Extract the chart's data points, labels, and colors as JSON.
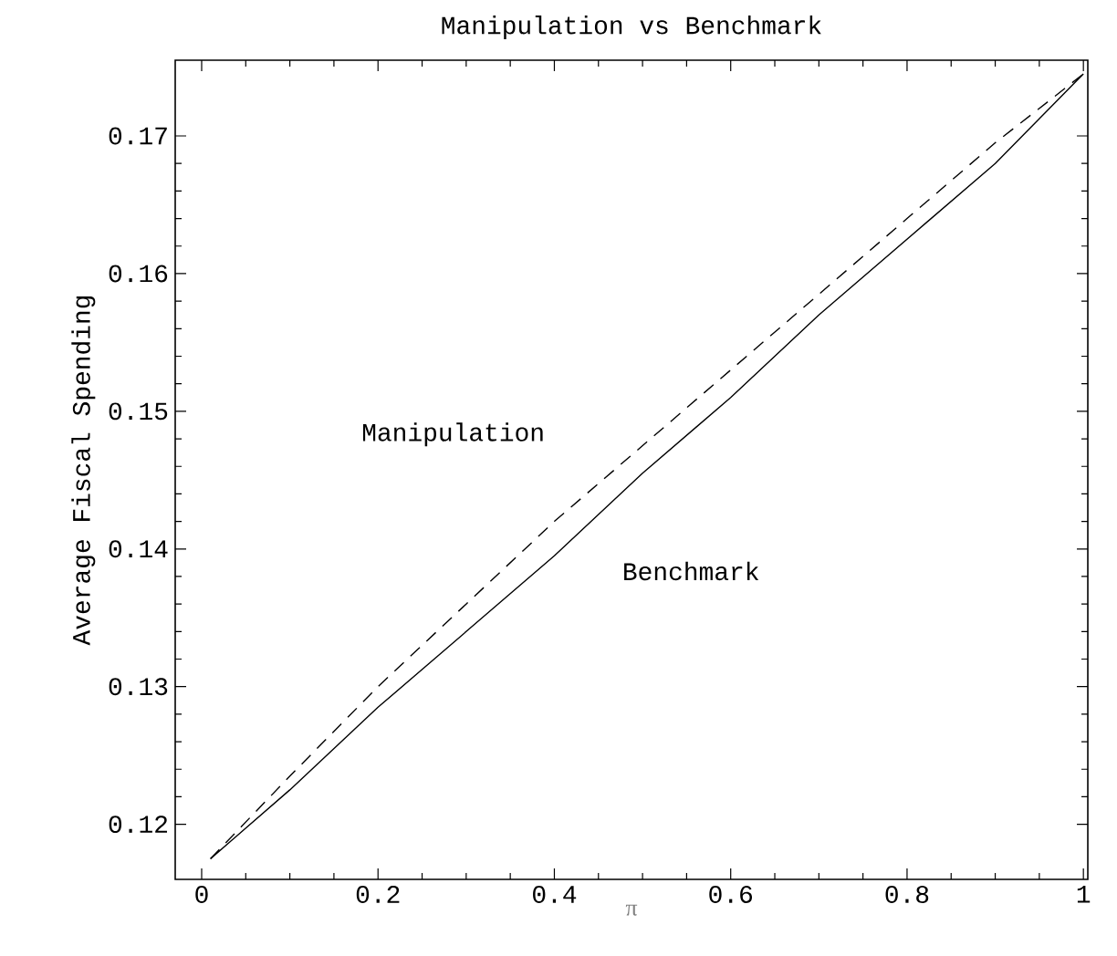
{
  "chart_data": {
    "type": "line",
    "title": "Manipulation vs Benchmark",
    "xlabel": "π",
    "ylabel": "Average Fiscal Spending",
    "xlim": [
      -0.03,
      1.005
    ],
    "ylim": [
      0.116,
      0.1755
    ],
    "xticks": [
      0,
      0.2,
      0.4,
      0.6,
      0.8,
      1
    ],
    "yticks": [
      0.12,
      0.13,
      0.14,
      0.15,
      0.16,
      0.17
    ],
    "grid": false,
    "marker": "none",
    "x": [
      0.01,
      0.1,
      0.2,
      0.3,
      0.4,
      0.5,
      0.6,
      0.7,
      0.8,
      0.9,
      1.0
    ],
    "series": [
      {
        "name": "Manipulation",
        "color": "#000000",
        "line_style": "dashed",
        "values": [
          0.1175,
          0.1235,
          0.13,
          0.136,
          0.142,
          0.1475,
          0.153,
          0.1585,
          0.164,
          0.1695,
          0.1745
        ]
      },
      {
        "name": "Benchmark",
        "color": "#000000",
        "line_style": "solid",
        "values": [
          0.1175,
          0.1225,
          0.1285,
          0.134,
          0.1395,
          0.1455,
          0.151,
          0.157,
          0.1625,
          0.168,
          0.1745
        ]
      }
    ]
  }
}
